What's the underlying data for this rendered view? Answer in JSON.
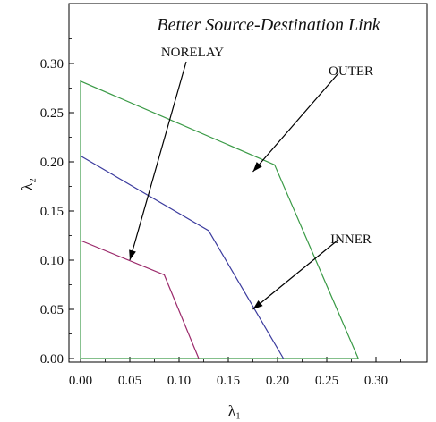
{
  "chart_data": {
    "type": "line",
    "title": "Better Source-Destination Link",
    "xlabel": "λ₁",
    "ylabel": "λ₂",
    "xlim": [
      0,
      0.33
    ],
    "ylim": [
      0,
      0.33
    ],
    "xticks": [
      "0.00",
      "0.05",
      "0.10",
      "0.15",
      "0.20",
      "0.25",
      "0.30"
    ],
    "yticks": [
      "0.00",
      "0.05",
      "0.10",
      "0.15",
      "0.20",
      "0.25",
      "0.30"
    ],
    "grid": false,
    "series": [
      {
        "key": "outer",
        "color": "#3a9a46",
        "points": [
          [
            0,
            0
          ],
          [
            0,
            0.282
          ],
          [
            0.197,
            0.197
          ],
          [
            0.282,
            0
          ],
          [
            0,
            0
          ]
        ]
      },
      {
        "key": "inner",
        "color": "#3b3b9e",
        "points": [
          [
            0,
            0.206
          ],
          [
            0.13,
            0.13
          ],
          [
            0.206,
            0
          ]
        ]
      },
      {
        "key": "norelay",
        "color": "#9b2a6b",
        "points": [
          [
            0,
            0.12
          ],
          [
            0.085,
            0.085
          ],
          [
            0.12,
            0
          ]
        ]
      }
    ],
    "annotations": [
      {
        "key": "norelay",
        "text": "NORELAY",
        "target": [
          0.05,
          0.1
        ]
      },
      {
        "key": "outer",
        "text": "OUTER",
        "target": [
          0.175,
          0.19
        ]
      },
      {
        "key": "inner",
        "text": "INNER",
        "target": [
          0.175,
          0.05
        ]
      }
    ]
  }
}
